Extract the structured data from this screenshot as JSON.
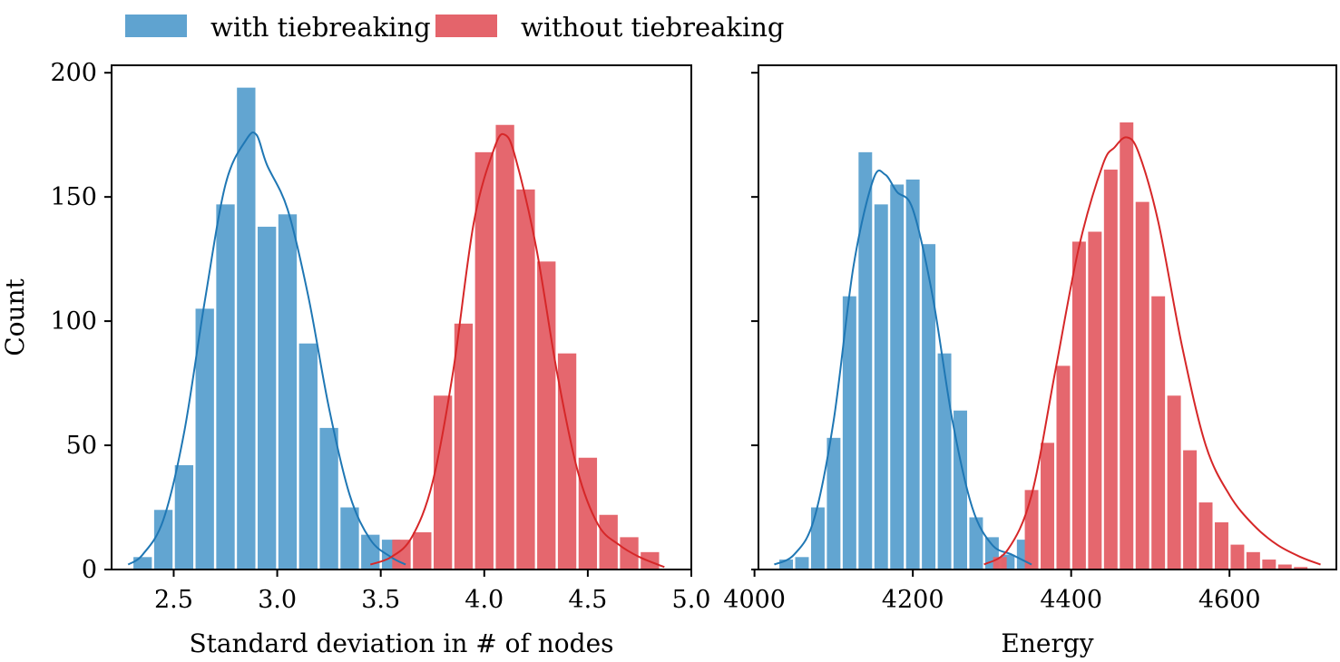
{
  "legend": {
    "entries": [
      {
        "label": "with tiebreaking",
        "color": "#5fa3d0"
      },
      {
        "label": "without tiebreaking",
        "color": "#e4646b"
      }
    ],
    "placement": "top-left, above plots"
  },
  "colors": {
    "with_bar": "#5fa3d0",
    "with_line": "#1f77b4",
    "without_bar": "#e4646b",
    "without_line": "#d62728"
  },
  "chart_data": [
    {
      "type": "bar",
      "subtype": "histogram with KDE",
      "xlabel": "Standard deviation in # of nodes",
      "ylabel": "Count",
      "xlim": [
        2.2,
        5.0
      ],
      "ylim": [
        0,
        203
      ],
      "xticks": [
        2.5,
        3.0,
        3.5,
        4.0,
        4.5,
        5.0
      ],
      "xtick_labels": [
        "2.5",
        "3.0",
        "3.5",
        "4.0",
        "4.5",
        "5.0"
      ],
      "yticks": [
        0,
        50,
        100,
        150,
        200
      ],
      "ytick_labels": [
        "0",
        "50",
        "100",
        "150",
        "200"
      ],
      "grid": false,
      "series": [
        {
          "name": "with tiebreaking",
          "bin_width": 0.1,
          "bin_centers": [
            2.35,
            2.45,
            2.55,
            2.65,
            2.75,
            2.85,
            2.95,
            3.05,
            3.15,
            3.25,
            3.35,
            3.45,
            3.55
          ],
          "counts": [
            5,
            24,
            42,
            105,
            147,
            194,
            138,
            143,
            91,
            57,
            25,
            14,
            12
          ],
          "kde": {
            "x": [
              2.28,
              2.35,
              2.45,
              2.55,
              2.65,
              2.75,
              2.85,
              2.9,
              2.95,
              3.05,
              3.15,
              3.25,
              3.35,
              3.45,
              3.55,
              3.62
            ],
            "y": [
              2,
              6,
              20,
              55,
              108,
              155,
              173,
              175,
              163,
              145,
              110,
              65,
              30,
              12,
              5,
              2
            ]
          }
        },
        {
          "name": "without tiebreaking",
          "bin_width": 0.1,
          "bin_centers": [
            3.6,
            3.7,
            3.8,
            3.9,
            4.0,
            4.1,
            4.2,
            4.3,
            4.4,
            4.5,
            4.6,
            4.7,
            4.8
          ],
          "counts": [
            12,
            15,
            70,
            99,
            168,
            179,
            153,
            124,
            87,
            45,
            22,
            13,
            7
          ],
          "kde": {
            "x": [
              3.45,
              3.55,
              3.65,
              3.75,
              3.85,
              3.95,
              4.05,
              4.1,
              4.15,
              4.25,
              4.35,
              4.45,
              4.55,
              4.65,
              4.75,
              4.87
            ],
            "y": [
              2,
              5,
              13,
              35,
              80,
              140,
              170,
              175,
              166,
              130,
              80,
              40,
              18,
              10,
              5,
              1
            ]
          }
        }
      ]
    },
    {
      "type": "bar",
      "subtype": "histogram with KDE",
      "xlabel": "Energy",
      "ylabel": "",
      "xlim": [
        4005,
        4735
      ],
      "ylim": [
        0,
        203
      ],
      "xticks": [
        4000,
        4200,
        4400,
        4600
      ],
      "xtick_labels": [
        "4000",
        "4200",
        "4400",
        "4600"
      ],
      "yticks": [
        0,
        50,
        100,
        150,
        200
      ],
      "ytick_labels": [
        "",
        "",
        "",
        "",
        ""
      ],
      "grid": false,
      "series": [
        {
          "name": "with tiebreaking",
          "bin_width": 20,
          "bin_centers": [
            4040,
            4060,
            4080,
            4100,
            4120,
            4140,
            4160,
            4180,
            4200,
            4220,
            4240,
            4260,
            4280,
            4300,
            4320,
            4340
          ],
          "counts": [
            4,
            5,
            25,
            53,
            110,
            168,
            147,
            155,
            157,
            131,
            87,
            64,
            21,
            13,
            6,
            12
          ],
          "kde": {
            "x": [
              4025,
              4050,
              4075,
              4100,
              4125,
              4150,
              4165,
              4180,
              4200,
              4225,
              4250,
              4275,
              4300,
              4325,
              4350
            ],
            "y": [
              2,
              6,
              20,
              60,
              122,
              157,
              159,
              152,
              145,
              110,
              60,
              25,
              10,
              6,
              2
            ]
          }
        },
        {
          "name": "without tiebreaking",
          "bin_width": 20,
          "bin_centers": [
            4310,
            4350,
            4370,
            4390,
            4410,
            4430,
            4450,
            4470,
            4490,
            4510,
            4530,
            4550,
            4570,
            4590,
            4610,
            4630,
            4650,
            4670,
            4690
          ],
          "counts": [
            5,
            32,
            51,
            82,
            132,
            136,
            161,
            180,
            148,
            110,
            70,
            48,
            27,
            19,
            10,
            7,
            4,
            2,
            1
          ],
          "kde": {
            "x": [
              4290,
              4320,
              4350,
              4380,
              4410,
              4440,
              4455,
              4470,
              4485,
              4510,
              4540,
              4570,
              4600,
              4630,
              4660,
              4690,
              4715
            ],
            "y": [
              2,
              8,
              30,
              80,
              130,
              163,
              170,
              174,
              168,
              140,
              90,
              50,
              30,
              18,
              10,
              5,
              2
            ]
          }
        }
      ]
    }
  ]
}
